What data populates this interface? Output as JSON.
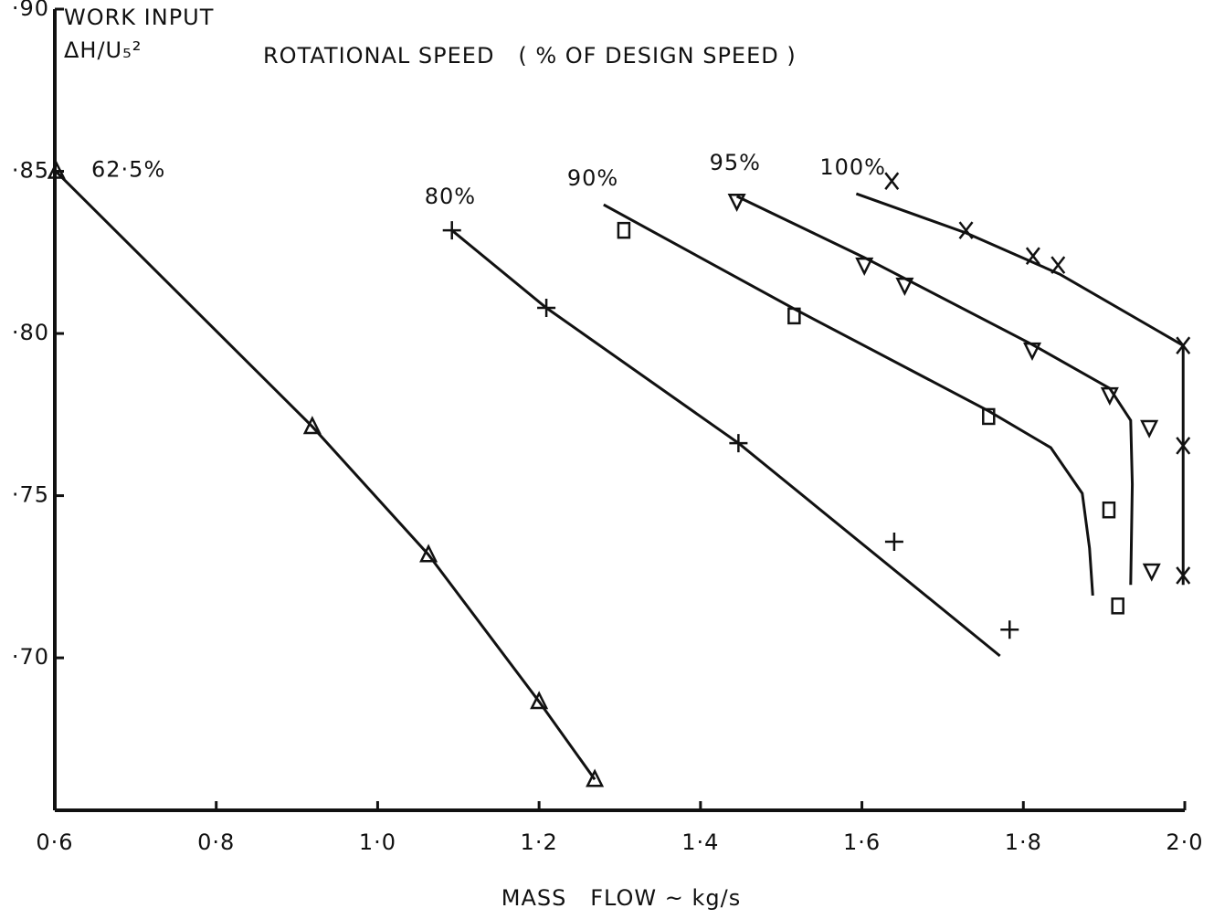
{
  "chart_data": {
    "type": "scatter",
    "title": "ROTATIONAL SPEED   ( % OF DESIGN SPEED )",
    "y_label": [
      "WORK INPUT",
      "ΔH/U₅²"
    ],
    "x_label": "MASS   FLOW ~ kg/s",
    "xlim": [
      0.6,
      2.0
    ],
    "ylim": [
      0.653,
      0.9
    ],
    "xticks": [
      {
        "value": 0.6,
        "label": "0·6"
      },
      {
        "value": 0.8,
        "label": "0·8"
      },
      {
        "value": 1.0,
        "label": "1·0"
      },
      {
        "value": 1.2,
        "label": "1·2"
      },
      {
        "value": 1.4,
        "label": "1·4"
      },
      {
        "value": 1.6,
        "label": "1·6"
      },
      {
        "value": 1.8,
        "label": "1·8"
      },
      {
        "value": 2.0,
        "label": "2·0"
      }
    ],
    "yticks": [
      {
        "value": 0.7,
        "label": "·70"
      },
      {
        "value": 0.75,
        "label": "·75"
      },
      {
        "value": 0.8,
        "label": "·80"
      },
      {
        "value": 0.85,
        "label": "·85"
      },
      {
        "value": 0.9,
        "label": "·90"
      }
    ],
    "color": "#111111",
    "series": [
      {
        "name": "62·5%",
        "marker": "triangle-up",
        "x": [
          0.602,
          0.919,
          1.063,
          1.2,
          1.269
        ],
        "values": [
          0.85,
          0.7713,
          0.7318,
          0.6865,
          0.6625
        ],
        "curve_x": [
          0.6,
          0.919,
          1.063,
          1.2,
          1.269
        ],
        "curve_y": [
          0.8503,
          0.7713,
          0.7318,
          0.6865,
          0.6625
        ]
      },
      {
        "name": "80%",
        "marker": "plus",
        "x": [
          1.092,
          1.209,
          1.447,
          1.64,
          1.783
        ],
        "values": [
          0.8318,
          0.8079,
          0.7662,
          0.7358,
          0.7087
        ],
        "curve_x": [
          1.092,
          1.209,
          1.447,
          1.771
        ],
        "curve_y": [
          0.8318,
          0.8079,
          0.7662,
          0.7006
        ]
      },
      {
        "name": "90%",
        "marker": "square",
        "x": [
          1.305,
          1.516,
          1.757,
          1.906,
          1.917
        ],
        "values": [
          0.8318,
          0.8054,
          0.7744,
          0.7456,
          0.716
        ],
        "curve_x": [
          1.28,
          1.516,
          1.757,
          1.834,
          1.873,
          1.882,
          1.886
        ],
        "curve_y": [
          0.8397,
          0.8076,
          0.7761,
          0.7648,
          0.7507,
          0.7338,
          0.7192
        ]
      },
      {
        "name": "95%",
        "marker": "triangle-down",
        "x": [
          1.445,
          1.603,
          1.653,
          1.811,
          1.907,
          1.956,
          1.959
        ],
        "values": [
          0.8408,
          0.8211,
          0.8149,
          0.7949,
          0.7811,
          0.771,
          0.7268
        ],
        "curve_x": [
          1.445,
          1.603,
          1.811,
          1.907,
          1.933,
          1.935,
          1.933
        ],
        "curve_y": [
          0.8423,
          0.8234,
          0.7966,
          0.7831,
          0.7732,
          0.7535,
          0.7225
        ]
      },
      {
        "name": "100%",
        "marker": "cross",
        "x": [
          1.637,
          1.729,
          1.812,
          1.843,
          1.998,
          1.998,
          1.998
        ],
        "values": [
          0.847,
          0.8318,
          0.8239,
          0.8211,
          0.7963,
          0.7654,
          0.7254
        ],
        "curve_x": [
          1.593,
          1.729,
          1.845,
          1.998,
          1.998
        ],
        "curve_y": [
          0.8431,
          0.831,
          0.8183,
          0.7963,
          0.7225
        ]
      }
    ]
  }
}
